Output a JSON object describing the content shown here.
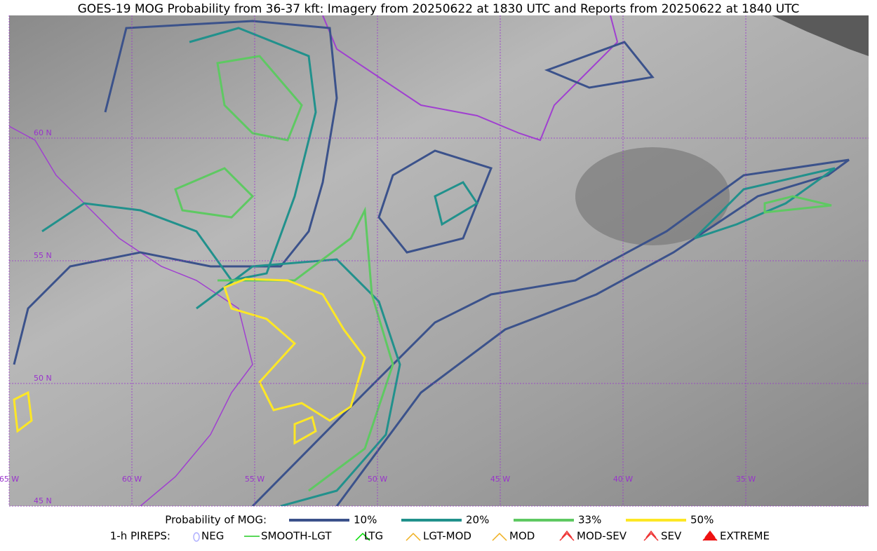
{
  "header": {
    "title": "GOES-19 MOG Probability from 36-37 kft: Imagery from 20250622 at 1830 UTC and Reports from 20250622 at 1840 UTC"
  },
  "map": {
    "lat_labels": [
      "60 N",
      "55 N",
      "50 N",
      "45 N"
    ],
    "lon_labels": [
      "65 W",
      "60 W",
      "55 W",
      "50 W",
      "45 W",
      "40 W",
      "35 W"
    ]
  },
  "legend": {
    "probability": {
      "title": "Probability of MOG:",
      "items": [
        {
          "label": "10%",
          "color": "#3b528b"
        },
        {
          "label": "20%",
          "color": "#21918c"
        },
        {
          "label": "33%",
          "color": "#5ec962"
        },
        {
          "label": "50%",
          "color": "#fde725"
        }
      ]
    },
    "pireps": {
      "title": "1-h PIREPS:",
      "items": [
        {
          "label": "NEG",
          "color": "#b0b0ff"
        },
        {
          "label": "SMOOTH-LGT",
          "color": "#22cc22"
        },
        {
          "label": "LTG",
          "color": "#00dd00"
        },
        {
          "label": "LGT-MOD",
          "color": "#f0b020"
        },
        {
          "label": "MOD",
          "color": "#f0b020"
        },
        {
          "label": "MOD-SEV",
          "color": "#ee3333"
        },
        {
          "label": "SEV",
          "color": "#ee3333"
        },
        {
          "label": "EXTREME",
          "color": "#ee1111"
        }
      ]
    }
  }
}
